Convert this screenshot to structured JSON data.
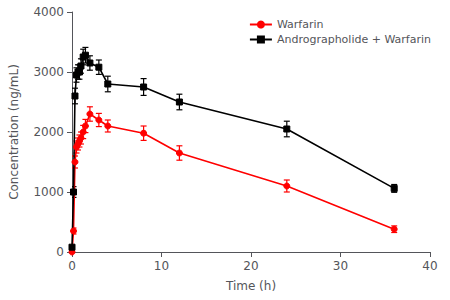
{
  "chart_data": {
    "type": "line",
    "xlabel": "Time (h)",
    "ylabel": "Concentration (ng/mL)",
    "xlim": [
      0,
      40
    ],
    "ylim": [
      0,
      4000
    ],
    "xticks": [
      0,
      10,
      20,
      30,
      40
    ],
    "yticks": [
      0,
      1000,
      2000,
      3000,
      4000
    ],
    "grid": false,
    "legend": "upper right",
    "series": [
      {
        "name": "Warfarin",
        "color": "#FF0000",
        "marker": "circle",
        "line_style": "solid",
        "x": [
          0,
          0.167,
          0.333,
          0.5,
          0.667,
          0.833,
          1.0,
          1.25,
          1.5,
          2.0,
          3.0,
          4.0,
          8.0,
          12.0,
          24.0,
          36.0
        ],
        "values": [
          0,
          350,
          1500,
          1750,
          1800,
          1850,
          1900,
          2000,
          2100,
          2300,
          2200,
          2100,
          1980,
          1650,
          1100,
          380
        ],
        "errors": [
          0,
          50,
          100,
          100,
          100,
          100,
          100,
          110,
          110,
          120,
          110,
          100,
          120,
          120,
          100,
          55
        ]
      },
      {
        "name": "Andrographolide + Warfarin",
        "color": "#000000",
        "marker": "square",
        "line_style": "solid",
        "x": [
          0,
          0.167,
          0.333,
          0.5,
          0.667,
          0.833,
          1.0,
          1.25,
          1.5,
          2.0,
          3.0,
          4.0,
          8.0,
          12.0,
          24.0,
          36.0
        ],
        "values": [
          80,
          1000,
          2600,
          2950,
          3000,
          3000,
          3100,
          3250,
          3280,
          3150,
          3080,
          2800,
          2750,
          2500,
          2050,
          1060
        ],
        "errors": [
          10,
          90,
          130,
          120,
          120,
          120,
          120,
          130,
          130,
          120,
          120,
          130,
          140,
          130,
          130,
          65
        ]
      }
    ]
  }
}
